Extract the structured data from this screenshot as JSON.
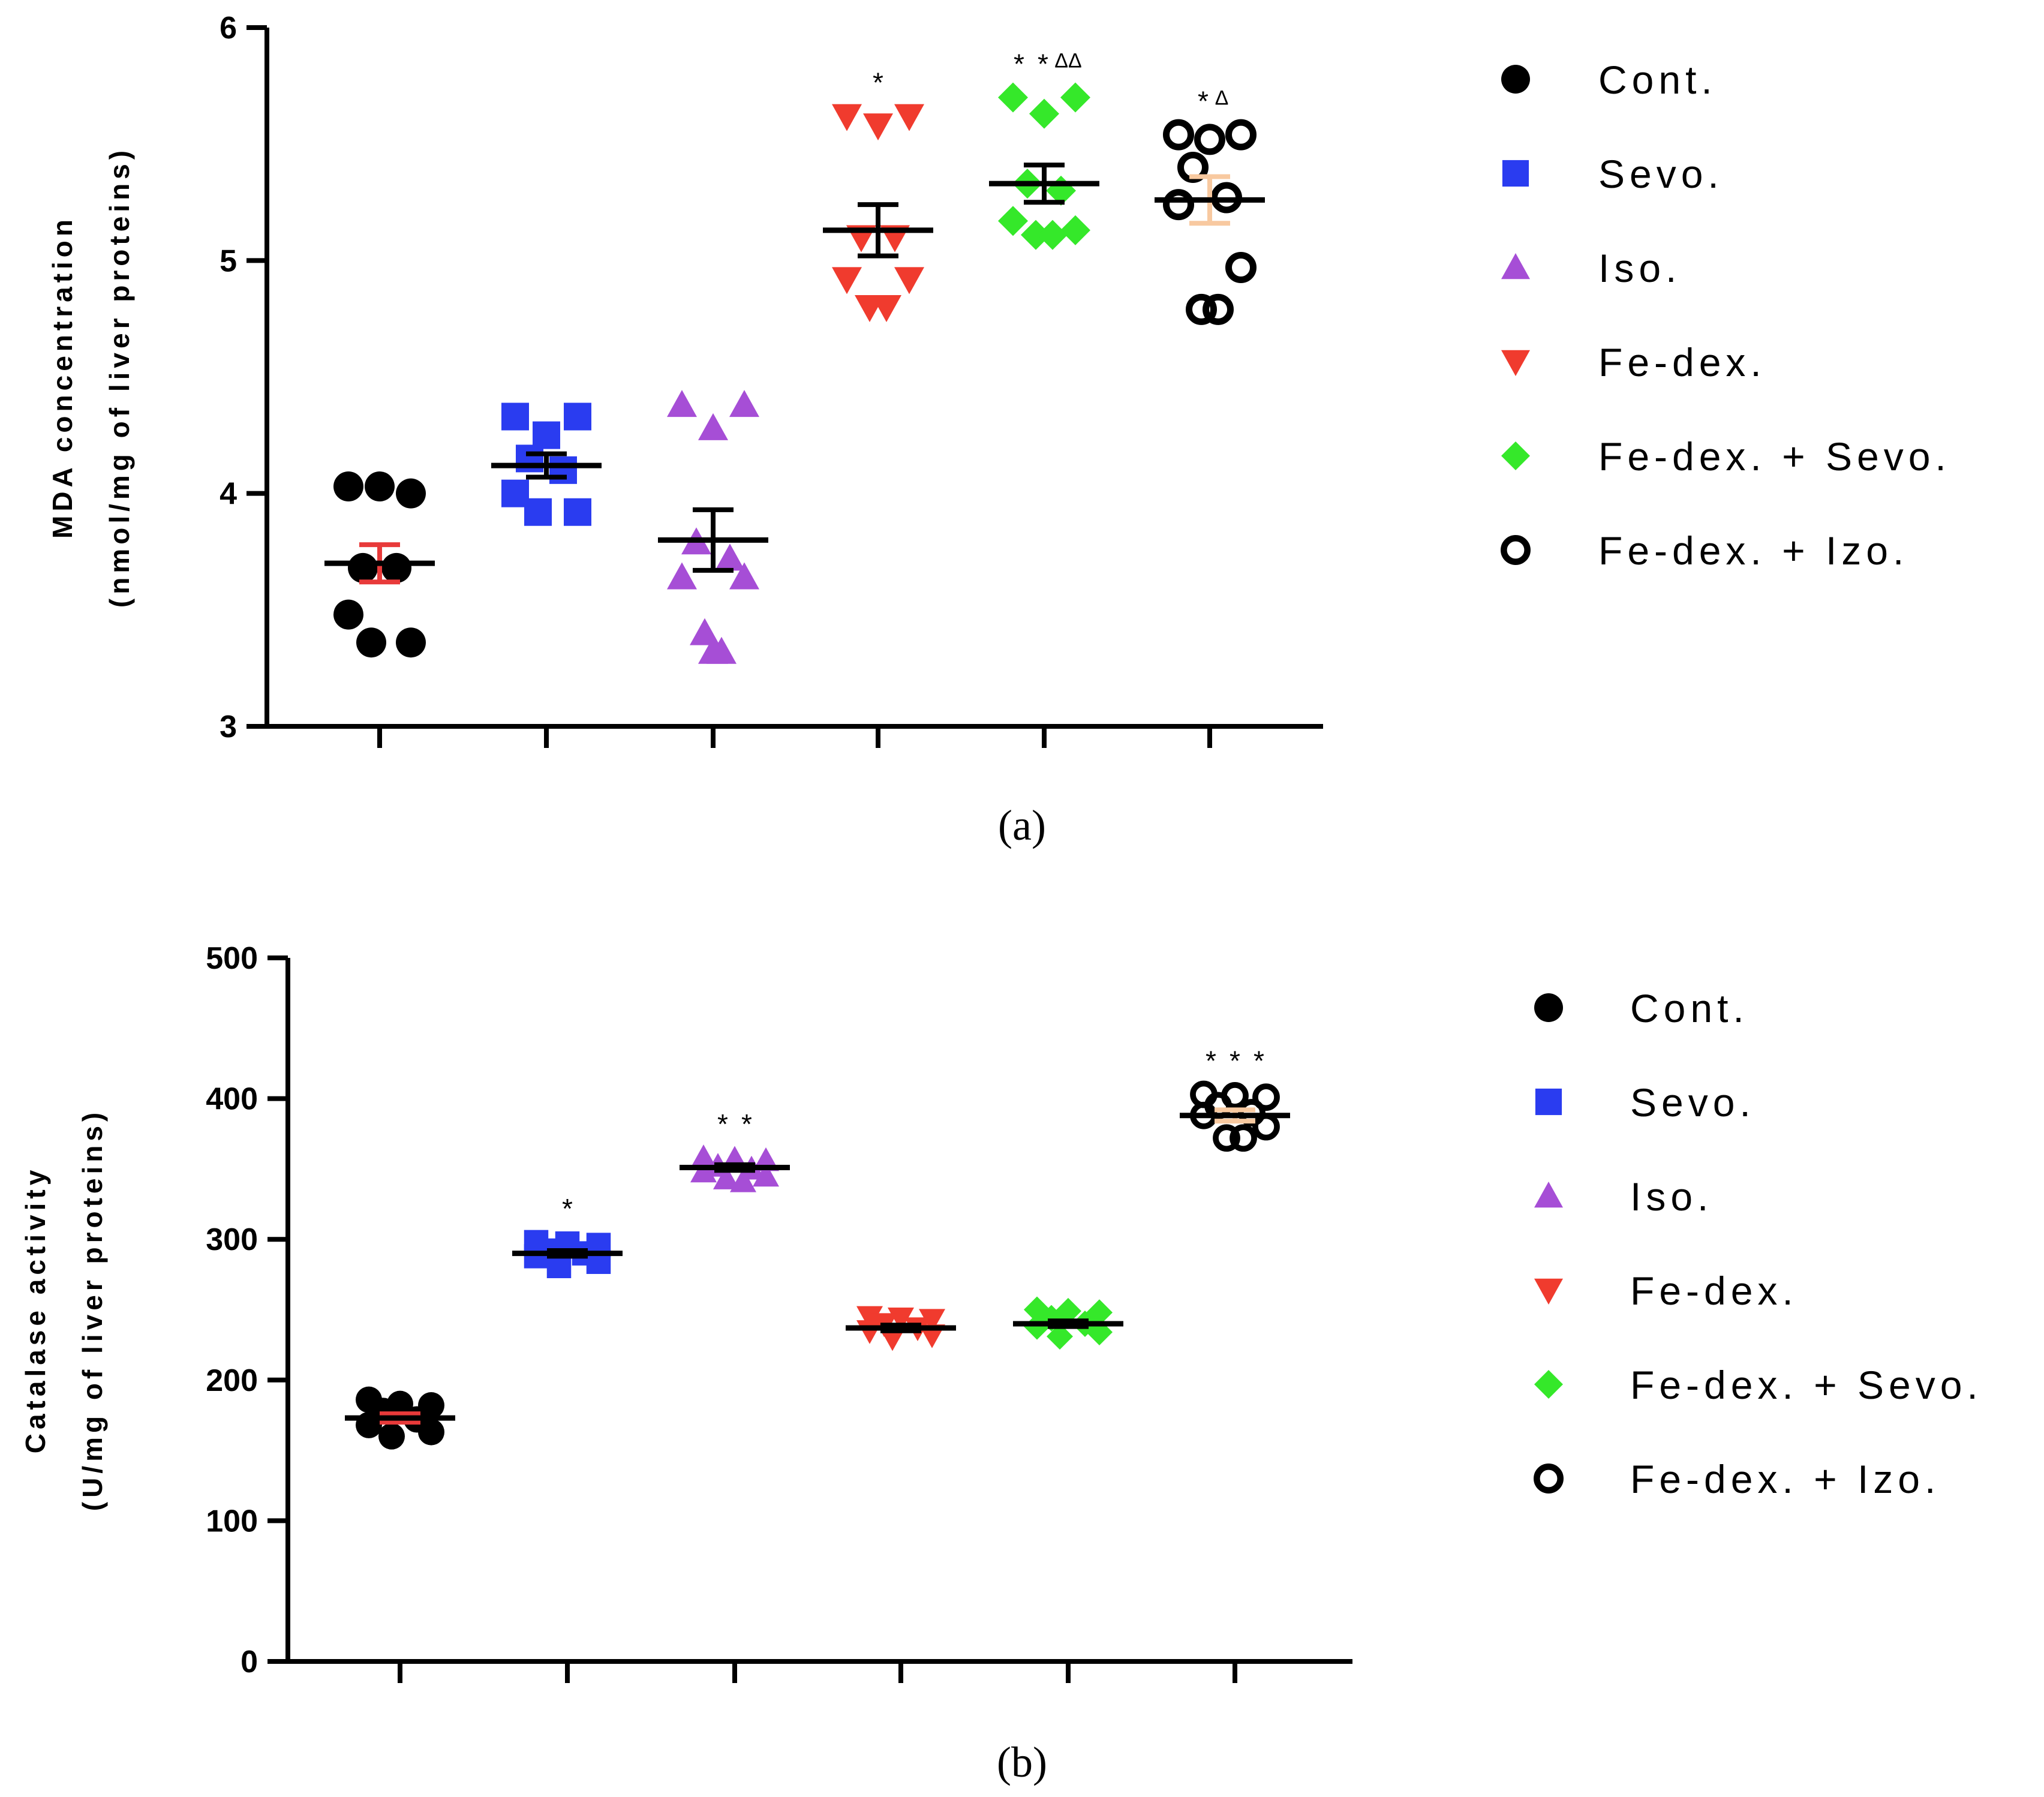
{
  "chart_data": [
    {
      "panel": "(a)",
      "type": "scatter",
      "title": "",
      "xlabel": "",
      "ylabel": [
        "MDA concentration",
        "(nmol/mg of liver proteins)"
      ],
      "ylim": [
        3,
        6
      ],
      "yticks": [
        "3",
        "4",
        "5",
        "6"
      ],
      "grid": false,
      "legend": "right",
      "groups": [
        {
          "name": "Cont.",
          "color": "#000000",
          "marker": "circle",
          "points": [
            4.03,
            4.0,
            4.03,
            3.68,
            3.68,
            3.48,
            3.36,
            3.36
          ],
          "mean": 3.7,
          "sem": 0.08,
          "sem_color": "#e83a3a",
          "sig": []
        },
        {
          "name": "Sevo.",
          "color": "#2a3cf0",
          "marker": "square",
          "points": [
            4.33,
            4.33,
            4.25,
            4.15,
            4.1,
            4.0,
            3.92,
            3.92
          ],
          "mean": 4.12,
          "sem": 0.05,
          "sem_color": "#000000",
          "sig": []
        },
        {
          "name": "Iso.",
          "color": "#a64ed6",
          "marker": "triangle-up",
          "points": [
            4.38,
            4.38,
            4.28,
            3.79,
            3.72,
            3.64,
            3.64,
            3.4,
            3.32,
            3.32
          ],
          "mean": 3.8,
          "sem": 0.13,
          "sem_color": "#000000",
          "sig": []
        },
        {
          "name": "Fe-dex.",
          "color": "#f03b2e",
          "marker": "triangle-down",
          "points": [
            5.62,
            5.62,
            5.58,
            5.1,
            5.1,
            4.92,
            4.92,
            4.8,
            4.8
          ],
          "mean": 5.13,
          "sem": 0.11,
          "sem_color": "#000000",
          "sig": [
            "*"
          ]
        },
        {
          "name": "Fe-dex. + Sevo.",
          "color": "#35e82a",
          "marker": "diamond",
          "points": [
            5.7,
            5.7,
            5.63,
            5.33,
            5.3,
            5.17,
            5.13,
            5.11,
            5.11
          ],
          "mean": 5.33,
          "sem": 0.08,
          "sem_color": "#000000",
          "sig": [
            "*",
            "*",
            "ΔΔ"
          ]
        },
        {
          "name": "Fe-dex. + Izo.",
          "color": "#000000",
          "marker": "circle-open",
          "points": [
            5.54,
            5.54,
            5.52,
            5.4,
            5.27,
            5.24,
            4.97,
            4.79,
            4.79
          ],
          "mean": 5.26,
          "sem": 0.1,
          "sem_color": "#f8c9a0",
          "sig": [
            "*",
            "Δ"
          ]
        }
      ]
    },
    {
      "panel": "(b)",
      "type": "scatter",
      "title": "",
      "xlabel": "",
      "ylabel": [
        "Catalase activity",
        "(U/mg of liver proteins)"
      ],
      "ylim": [
        0,
        500
      ],
      "yticks": [
        "0",
        "100",
        "200",
        "300",
        "400",
        "500"
      ],
      "grid": false,
      "legend": "right",
      "groups": [
        {
          "name": "Cont.",
          "color": "#000000",
          "marker": "circle",
          "points": [
            186,
            182,
            183,
            178,
            172,
            168,
            163,
            160
          ],
          "mean": 173,
          "sem": 3,
          "sem_color": "#e83a3a",
          "sig": []
        },
        {
          "name": "Sevo.",
          "color": "#2a3cf0",
          "marker": "square",
          "points": [
            298,
            296,
            297,
            292,
            290,
            288,
            284,
            281
          ],
          "mean": 290,
          "sem": 2,
          "sem_color": "#000000",
          "sig": [
            "*"
          ]
        },
        {
          "name": "Iso.",
          "color": "#a64ed6",
          "marker": "triangle-up",
          "points": [
            358,
            356,
            357,
            352,
            350,
            348,
            345,
            343,
            341
          ],
          "mean": 351,
          "sem": 2,
          "sem_color": "#000000",
          "sig": [
            "*",
            "*"
          ]
        },
        {
          "name": "Fe-dex.",
          "color": "#f03b2e",
          "marker": "triangle-down",
          "points": [
            245,
            243,
            244,
            240,
            237,
            235,
            232,
            230
          ],
          "mean": 237,
          "sem": 2,
          "sem_color": "#000000",
          "sig": []
        },
        {
          "name": "Fe-dex. + Sevo.",
          "color": "#35e82a",
          "marker": "diamond",
          "points": [
            250,
            248,
            249,
            244,
            240,
            238,
            234,
            231
          ],
          "mean": 240,
          "sem": 2,
          "sem_color": "#000000",
          "sig": []
        },
        {
          "name": "Fe-dex. + Izo.",
          "color": "#000000",
          "marker": "circle-open",
          "points": [
            403,
            401,
            402,
            395,
            390,
            388,
            380,
            372,
            372
          ],
          "mean": 388,
          "sem": 4,
          "sem_color": "#f8c9a0",
          "sig": [
            "*",
            "*",
            "*"
          ]
        }
      ]
    }
  ]
}
